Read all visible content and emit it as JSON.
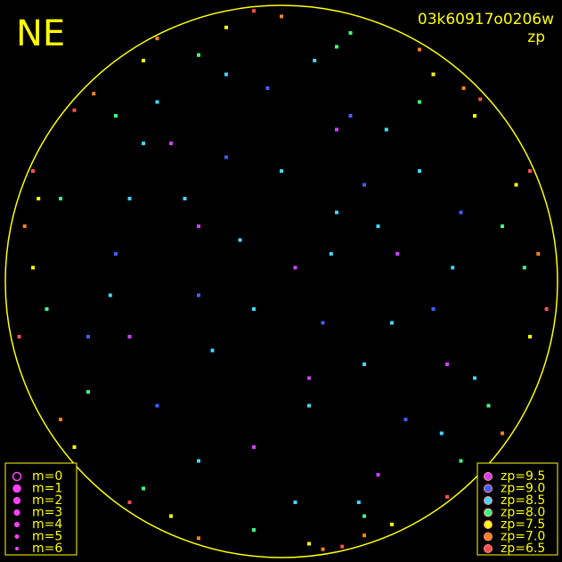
{
  "chart_data": {
    "type": "scatter",
    "corner_label": "NE",
    "title": "03k60917o0206w",
    "subtitle": "zp",
    "xlim": [
      -1,
      1
    ],
    "ylim": [
      -1,
      1
    ],
    "size_legend": [
      "m=0",
      "m=1",
      "m=2",
      "m=3",
      "m=4",
      "m=5",
      "m=6"
    ],
    "series": [
      {
        "name": "zp=9.5",
        "color": "#d040ff",
        "x": [
          -0.3,
          0.1,
          0.42,
          -0.55,
          0.2,
          -0.1,
          0.6,
          -0.4,
          0.05,
          0.35
        ],
        "y": [
          0.2,
          -0.35,
          0.1,
          -0.2,
          0.55,
          -0.6,
          -0.3,
          0.5,
          0.05,
          -0.7
        ]
      },
      {
        "name": "zp=9.0",
        "color": "#4060ff",
        "x": [
          -0.6,
          -0.2,
          0.3,
          0.55,
          -0.45,
          0.15,
          -0.05,
          0.45,
          -0.7,
          0.25,
          -0.3,
          0.65
        ],
        "y": [
          0.1,
          0.45,
          0.35,
          -0.1,
          -0.45,
          -0.15,
          0.7,
          -0.5,
          -0.2,
          0.6,
          -0.05,
          0.25
        ]
      },
      {
        "name": "zp=8.5",
        "color": "#40d8ff",
        "x": [
          -0.5,
          -0.35,
          -0.15,
          0.0,
          0.2,
          0.38,
          0.5,
          -0.62,
          -0.25,
          0.1,
          0.3,
          0.58,
          -0.45,
          -0.1,
          0.18,
          0.4,
          -0.3,
          0.05,
          0.28,
          -0.55,
          0.62,
          -0.2,
          0.12,
          0.35,
          0.7
        ],
        "y": [
          0.5,
          0.3,
          0.15,
          0.4,
          0.25,
          0.55,
          0.4,
          -0.05,
          -0.25,
          -0.45,
          -0.3,
          -0.55,
          0.65,
          -0.1,
          0.1,
          -0.15,
          -0.65,
          -0.8,
          -0.8,
          0.3,
          0.05,
          0.75,
          0.8,
          0.2,
          -0.35
        ]
      },
      {
        "name": "zp=8.0",
        "color": "#40ff80",
        "x": [
          -0.8,
          -0.7,
          -0.85,
          0.8,
          0.75,
          0.88,
          -0.3,
          0.2,
          0.5,
          -0.6,
          0.65,
          0.3,
          -0.1,
          0.25,
          -0.5
        ],
        "y": [
          0.3,
          -0.4,
          -0.1,
          0.2,
          -0.45,
          0.05,
          0.82,
          0.85,
          0.65,
          0.6,
          -0.65,
          -0.85,
          -0.9,
          0.9,
          -0.75
        ]
      },
      {
        "name": "zp=7.5",
        "color": "#ffff00",
        "x": [
          -0.9,
          0.9,
          -0.5,
          0.55,
          -0.75,
          0.7,
          -0.2,
          0.1,
          0.4,
          -0.4,
          0.85,
          -0.88
        ],
        "y": [
          0.05,
          -0.2,
          0.8,
          0.75,
          -0.6,
          0.6,
          0.92,
          -0.95,
          -0.88,
          -0.85,
          0.35,
          0.3
        ]
      },
      {
        "name": "zp=7.0",
        "color": "#ff8020",
        "x": [
          -0.93,
          0.93,
          -0.68,
          0.66,
          -0.3,
          0.3,
          0.0,
          -0.8,
          0.8,
          -0.45,
          0.5,
          0.15
        ],
        "y": [
          0.2,
          0.1,
          0.68,
          0.7,
          -0.93,
          -0.92,
          0.96,
          -0.5,
          -0.55,
          0.88,
          0.84,
          -0.97
        ]
      },
      {
        "name": "zp=6.5",
        "color": "#ff5050",
        "x": [
          -0.75,
          0.72,
          -0.95,
          0.96,
          -0.1,
          0.22,
          -0.55,
          0.6,
          0.9,
          -0.9
        ],
        "y": [
          0.62,
          0.66,
          -0.2,
          -0.1,
          0.98,
          -0.96,
          -0.8,
          -0.78,
          0.4,
          0.4
        ]
      }
    ]
  }
}
